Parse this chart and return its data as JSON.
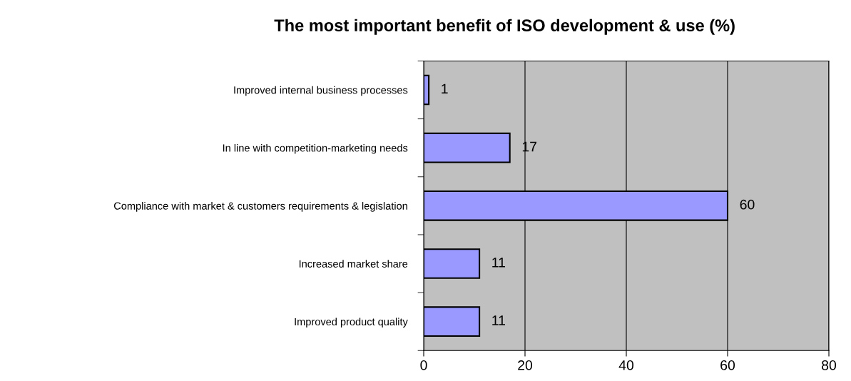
{
  "chart_data": {
    "type": "bar",
    "orientation": "horizontal",
    "title": "The most important benefit of ISO development & use (%)",
    "categories": [
      "Improved internal business processes",
      "In line with competition-marketing needs",
      "Compliance with market & customers requirements & legislation",
      "Increased market share",
      "Improved product quality"
    ],
    "values": [
      1,
      17,
      60,
      11,
      11
    ],
    "color": "#9999ff",
    "xlim": [
      0,
      80
    ],
    "xticks": [
      0,
      20,
      40,
      60,
      80
    ],
    "grid": "x",
    "data_labels": true
  }
}
